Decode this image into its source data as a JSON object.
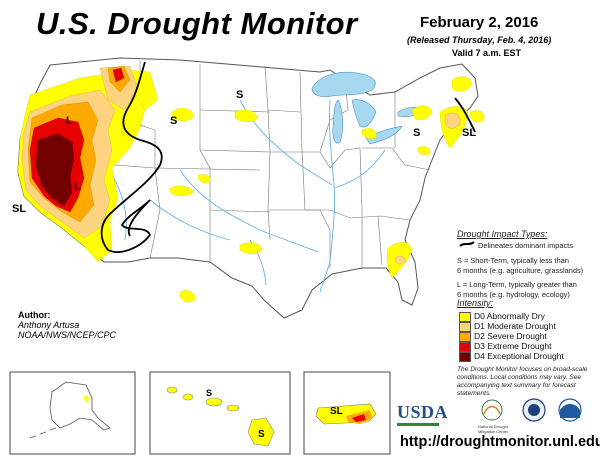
{
  "header": {
    "title": "U.S. Drought Monitor",
    "date": "February 2, 2016",
    "released": "(Released Thursday, Feb. 4, 2016)",
    "valid": "Valid 7 a.m. EST"
  },
  "map_labels": {
    "short_term": "S",
    "long_term": "L",
    "short_long": "SL"
  },
  "legend": {
    "impact_title": "Drought Impact Types:",
    "delineates": "Delineates dominant impacts",
    "s_line1": "S = Short-Term, typically less than",
    "s_line2": "6 months (e.g. agriculture, grasslands)",
    "l_line1": "L = Long-Term, typically greater than",
    "l_line2": "6 months (e.g. hydrology, ecology)",
    "intensity_title": "Intensity:",
    "levels": [
      {
        "label": "D0 Abnormally Dry",
        "color": "#ffff00"
      },
      {
        "label": "D1 Moderate Drought",
        "color": "#fcd37f"
      },
      {
        "label": "D2 Severe Drought",
        "color": "#ffaa00"
      },
      {
        "label": "D3 Extreme Drought",
        "color": "#e60000"
      },
      {
        "label": "D4 Exceptional Drought",
        "color": "#730000"
      }
    ],
    "note": "The Drought Monitor focuses on broad-scale conditions. Local conditions may vary. See accompanying text summary for forecast statements."
  },
  "author": {
    "label": "Author:",
    "name": "Anthony Artusa",
    "org": "NOAA/NWS/NCEP/CPC"
  },
  "logos": {
    "usda": "USDA",
    "ndmc": "National Drought Mitigation Center"
  },
  "footer": {
    "url": "http://droughtmonitor.unl.edu/"
  },
  "colors": {
    "d0": "#ffff00",
    "d1": "#fcd37f",
    "d2": "#ffaa00",
    "d3": "#e60000",
    "d4": "#730000",
    "water": "#a6d8f0",
    "river": "#64b4e6"
  }
}
